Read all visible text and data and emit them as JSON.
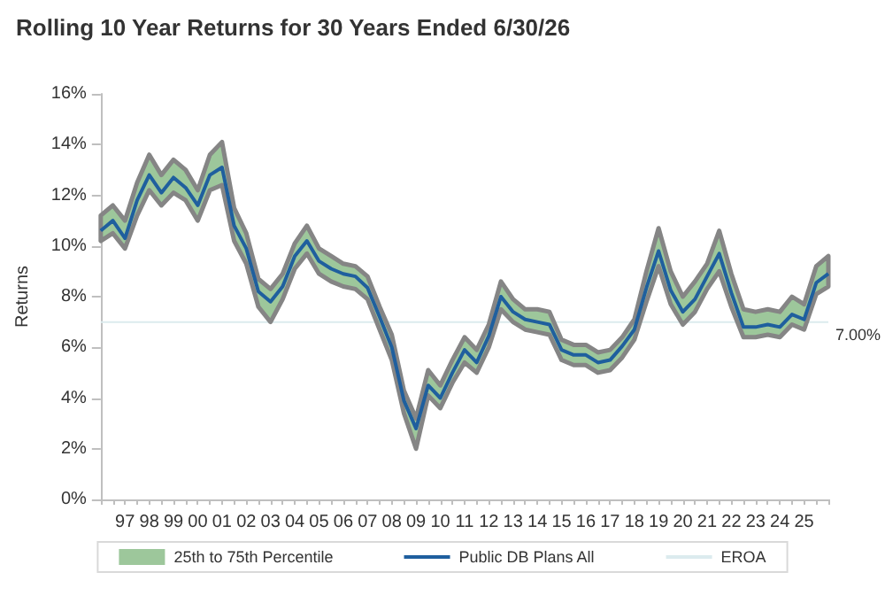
{
  "chart_data": {
    "type": "line",
    "title": "Rolling 10 Year Returns for 30 Years Ended 6/30/26",
    "ylabel": "Returns",
    "categories": [
      null,
      null,
      "97",
      null,
      "98",
      null,
      "99",
      null,
      "00",
      null,
      "01",
      null,
      "02",
      null,
      "03",
      null,
      "04",
      null,
      "05",
      null,
      "06",
      null,
      "07",
      null,
      "08",
      null,
      "09",
      null,
      "10",
      null,
      "11",
      null,
      "12",
      null,
      "13",
      null,
      "14",
      null,
      "15",
      null,
      "16",
      null,
      "17",
      null,
      "18",
      null,
      "19",
      null,
      "20",
      null,
      "21",
      null,
      "22",
      null,
      "23",
      null,
      "24",
      null,
      "25",
      null,
      null
    ],
    "series": [
      {
        "name": "25th to 75th Percentile",
        "type": "area",
        "color": "#9dc79b",
        "values": [
          null,
          null,
          null,
          null,
          null,
          null,
          null,
          null,
          null,
          null,
          null,
          null,
          null,
          null,
          null,
          null,
          null,
          null,
          null,
          null,
          null,
          null,
          null,
          null,
          null,
          null,
          null,
          null,
          null,
          null,
          null,
          null,
          null,
          null,
          null,
          null,
          null,
          null,
          null,
          null,
          null,
          null,
          null,
          null,
          null,
          null,
          null,
          null,
          null,
          null,
          null,
          null,
          null,
          null,
          null,
          null,
          null,
          null,
          null,
          null,
          null
        ],
        "upper": [
          11.2,
          11.6,
          11.0,
          12.5,
          13.6,
          12.8,
          13.4,
          13.0,
          12.2,
          13.6,
          14.1,
          11.5,
          10.5,
          8.7,
          8.3,
          8.9,
          10.1,
          10.8,
          9.9,
          9.6,
          9.3,
          9.2,
          8.8,
          7.6,
          6.5,
          4.3,
          3.2,
          5.1,
          4.5,
          5.5,
          6.4,
          5.9,
          6.9,
          8.6,
          7.9,
          7.5,
          7.5,
          7.4,
          6.3,
          6.1,
          6.1,
          5.8,
          5.9,
          6.4,
          7.1,
          9.0,
          10.7,
          9.0,
          8.0,
          8.6,
          9.3,
          10.6,
          8.9,
          7.5,
          7.4,
          7.5,
          7.4,
          8.0,
          7.7,
          9.2,
          9.6
        ],
        "lower": [
          10.2,
          10.5,
          9.9,
          11.2,
          12.2,
          11.6,
          12.1,
          11.8,
          11.0,
          12.2,
          12.4,
          10.2,
          9.3,
          7.6,
          7.0,
          7.9,
          9.1,
          9.7,
          8.9,
          8.6,
          8.4,
          8.3,
          7.9,
          6.7,
          5.5,
          3.4,
          2.0,
          4.1,
          3.6,
          4.6,
          5.4,
          5.0,
          6.0,
          7.5,
          7.0,
          6.7,
          6.6,
          6.5,
          5.5,
          5.3,
          5.3,
          5.0,
          5.1,
          5.6,
          6.3,
          7.8,
          9.2,
          7.7,
          6.9,
          7.4,
          8.3,
          9.0,
          7.6,
          6.4,
          6.4,
          6.5,
          6.4,
          6.9,
          6.7,
          8.1,
          8.4
        ]
      },
      {
        "name": "Public DB Plans All",
        "color": "#1f5f9e",
        "values": [
          10.6,
          11.0,
          10.3,
          11.8,
          12.8,
          12.1,
          12.7,
          12.3,
          11.6,
          12.8,
          13.1,
          10.8,
          9.9,
          8.2,
          7.8,
          8.4,
          9.6,
          10.2,
          9.4,
          9.1,
          8.9,
          8.8,
          8.35,
          7.2,
          6.0,
          3.9,
          2.8,
          4.5,
          4.0,
          5.0,
          5.9,
          5.4,
          6.45,
          8.0,
          7.4,
          7.1,
          7.0,
          6.9,
          5.9,
          5.7,
          5.7,
          5.4,
          5.5,
          6.05,
          6.7,
          8.35,
          9.8,
          8.25,
          7.4,
          7.9,
          8.8,
          9.7,
          8.15,
          6.8,
          6.8,
          6.9,
          6.8,
          7.3,
          7.1,
          8.55,
          8.9
        ]
      },
      {
        "name": "EROA",
        "color": "#dcebee",
        "values": [
          7,
          7,
          7,
          7,
          7,
          7,
          7,
          7,
          7,
          7,
          7,
          7,
          7,
          7,
          7,
          7,
          7,
          7,
          7,
          7,
          7,
          7,
          7,
          7,
          7,
          7,
          7,
          7,
          7,
          7,
          7,
          7,
          7,
          7,
          7,
          7,
          null,
          7,
          7,
          7,
          7,
          7,
          7,
          7,
          7,
          7,
          7,
          7,
          7,
          7,
          7,
          7,
          7,
          7,
          null,
          null,
          null,
          7,
          7,
          7,
          7
        ]
      }
    ],
    "annotations": [
      "7.00%"
    ],
    "ylim": [
      0,
      16
    ],
    "yticks": [
      {
        "value": 0,
        "label": "0%"
      },
      {
        "value": 2,
        "label": "2%"
      },
      {
        "value": 4,
        "label": "4%"
      },
      {
        "value": 6,
        "label": "6%"
      },
      {
        "value": 8,
        "label": "8%"
      },
      {
        "value": 10,
        "label": "10%"
      },
      {
        "value": 12,
        "label": "12%"
      },
      {
        "value": 14,
        "label": "14%"
      },
      {
        "value": 16,
        "label": "16%"
      }
    ],
    "grid": false,
    "legend": "bottom",
    "marker": "none",
    "line_style": "solid"
  }
}
